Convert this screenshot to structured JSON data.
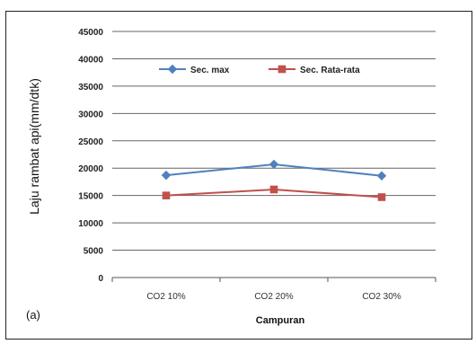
{
  "chart_data": {
    "type": "line",
    "title": "",
    "xlabel": "Campuran",
    "ylabel": "Laju rambat api(mm/dtk)",
    "panel_label": "(a)",
    "categories": [
      "CO2 10%",
      "CO2 20%",
      "CO2 30%"
    ],
    "ylim": [
      0,
      45000
    ],
    "yticks": [
      0,
      5000,
      10000,
      15000,
      20000,
      25000,
      30000,
      35000,
      40000,
      45000
    ],
    "grid": true,
    "legend_position": "top-center",
    "series": [
      {
        "name": "Sec. max",
        "values": [
          18700,
          20700,
          18600
        ],
        "color": "#4f81bd",
        "marker": "diamond"
      },
      {
        "name": "Sec. Rata-rata",
        "values": [
          15000,
          16100,
          14700
        ],
        "color": "#c0504d",
        "marker": "square"
      }
    ]
  }
}
